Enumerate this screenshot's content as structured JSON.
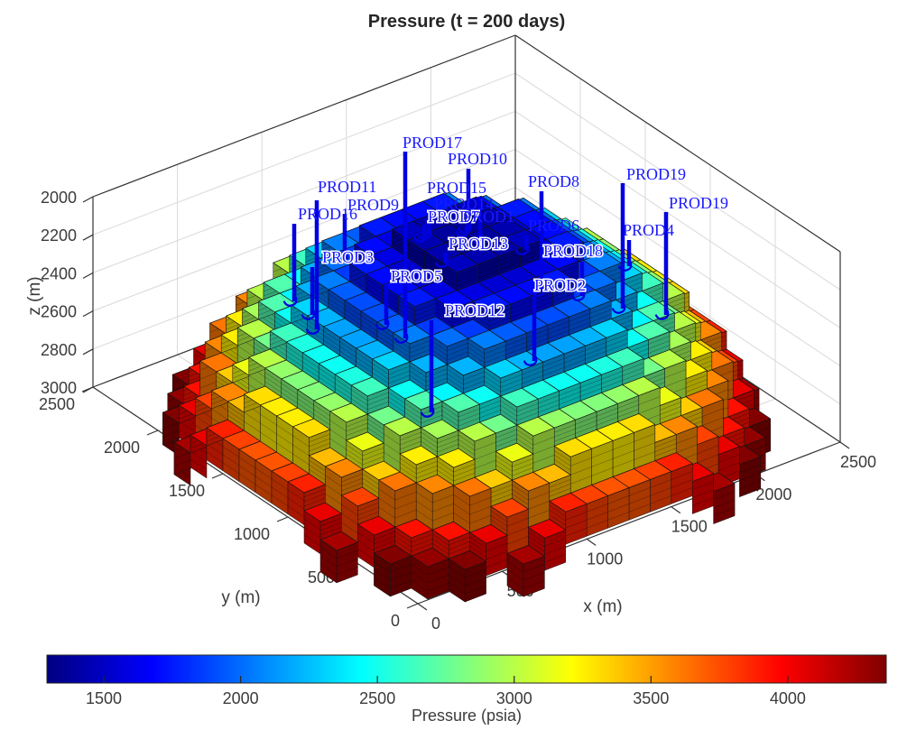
{
  "chart_data": {
    "type": "surface-3d",
    "title": "Pressure (t = 200 days)",
    "xlabel": "x (m)",
    "ylabel": "y (m)",
    "zlabel": "z (m)",
    "x_ticks": [
      0,
      500,
      1000,
      1500,
      2000,
      2500
    ],
    "y_ticks": [
      0,
      500,
      1000,
      1500,
      2000,
      2500
    ],
    "z_ticks": [
      2000,
      2200,
      2400,
      2600,
      2800,
      3000
    ],
    "x_range": [
      0,
      2500
    ],
    "y_range": [
      0,
      2500
    ],
    "z_range": [
      2000,
      3000
    ],
    "z_axis_reversed": true,
    "grid": true,
    "colorbar": {
      "label": "Pressure (psia)",
      "ticks": [
        1500,
        2000,
        2500,
        3000,
        3500,
        4000
      ],
      "min": 1292,
      "max": 4360,
      "colormap": "jet",
      "orientation": "horizontal"
    },
    "surface": {
      "description": "dome-shaped (anticline) reservoir grid colored by pressure; low pressure at crest near producers, high pressure at flanks",
      "center_m": [
        1250,
        1250
      ],
      "footprint_radius_m": 1340,
      "crest_depth_m": 2055,
      "base_depth_m": 3000,
      "crest_pressure_psia": 1370,
      "rim_pressure_psia": 4360,
      "grid_cells": 20,
      "cell_size_m": 125,
      "terrace_step_m": 95,
      "rim_skirt_m": 170
    },
    "wells": [
      {
        "name": "PROD17",
        "line": [
          449,
          168,
          378
        ],
        "label": [
          446,
          164
        ],
        "halo": false
      },
      {
        "name": "PROD10",
        "line": [
          519,
          187,
          256
        ],
        "label": [
          496,
          182
        ],
        "halo": false
      },
      {
        "name": "PROD11",
        "line": [
          351,
          222,
          368
        ],
        "label": [
          352,
          213
        ],
        "halo": false
      },
      {
        "name": "PROD15",
        "line": [
          532,
          218,
          267
        ],
        "label": [
          473,
          214
        ],
        "halo": false
      },
      {
        "name": "PROD9",
        "line": [
          382,
          237,
          290
        ],
        "label": [
          385,
          233
        ],
        "halo": false
      },
      {
        "name": "PROD16",
        "line": [
          326,
          248,
          337
        ],
        "label": [
          330,
          243
        ],
        "halo": false
      },
      {
        "name": "PROD14",
        "line": [
          475,
          236,
          263
        ],
        "label": [
          481,
          232
        ],
        "halo": false
      },
      {
        "name": "PROD7",
        "line": [
          470,
          249,
          266
        ],
        "label": [
          474,
          246
        ],
        "halo": true
      },
      {
        "name": "PROD1",
        "line": [
          517,
          250,
          260
        ],
        "label": [
          513,
          246
        ],
        "halo": false
      },
      {
        "name": "PROD13",
        "line": [
          494,
          280,
          294
        ],
        "label": [
          497,
          276
        ],
        "halo": true
      },
      {
        "name": "PROD8",
        "line": [
          600,
          212,
          326
        ],
        "label": [
          585,
          207
        ],
        "halo": false
      },
      {
        "name": "PROD6",
        "line": [
          583,
          261,
          280
        ],
        "label": [
          585,
          256
        ],
        "halo": false
      },
      {
        "name": "PROD19",
        "line": [
          690,
          203,
          345
        ],
        "label": [
          694,
          199
        ],
        "halo": false
      },
      {
        "name": "PROD19",
        "line": [
          738,
          235,
          352
        ],
        "label": [
          741,
          231
        ],
        "halo": false
      },
      {
        "name": "PROD4",
        "line": [
          697,
          266,
          298
        ],
        "label": [
          690,
          261
        ],
        "halo": false
      },
      {
        "name": "PROD18",
        "line": [
          645,
          290,
          331
        ],
        "label": [
          602,
          284
        ],
        "halo": true
      },
      {
        "name": "PROD2",
        "line": [
          592,
          328,
          403
        ],
        "label": [
          592,
          322
        ],
        "halo": true
      },
      {
        "name": "PROD5",
        "line": [
          428,
          316,
          363
        ],
        "label": [
          433,
          312
        ],
        "halo": true
      },
      {
        "name": "PROD3",
        "line": [
          346,
          296,
          352
        ],
        "label": [
          357,
          291
        ],
        "halo": true
      },
      {
        "name": "PROD12",
        "line": [
          478,
          355,
          460
        ],
        "label": [
          493,
          350
        ],
        "halo": true
      }
    ],
    "colors": {
      "well_line": "#0000e0",
      "well_label": "#1a1aff",
      "axis_line": "#333333",
      "grid_line": "#d9d9d9",
      "tick_label": "#3b3b3b",
      "title": "#262626",
      "mesh_edge": "#141414"
    }
  }
}
